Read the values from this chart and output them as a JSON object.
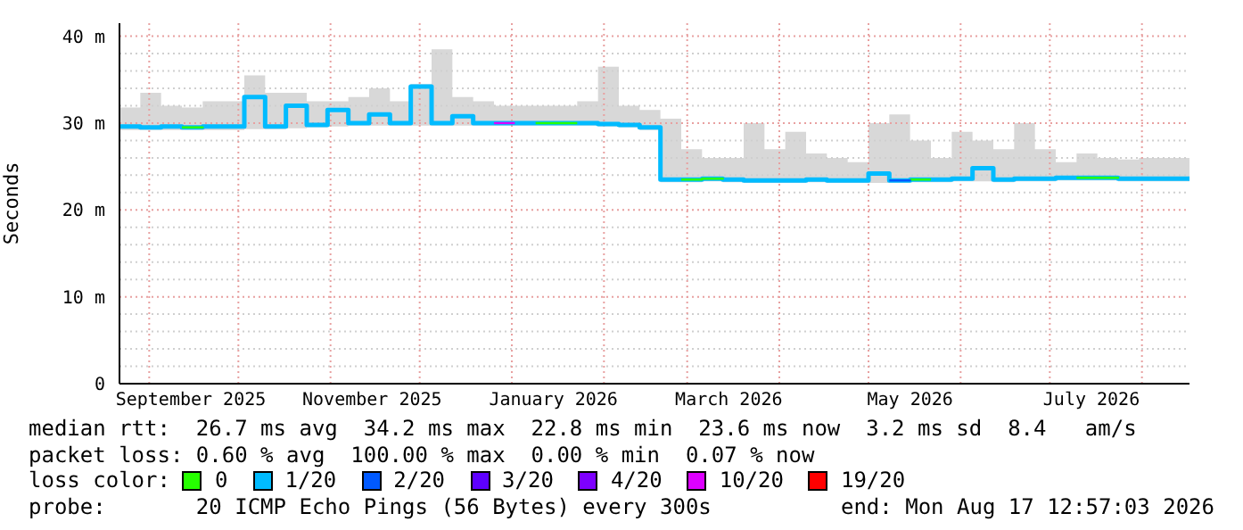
{
  "chart_data": {
    "type": "step",
    "ylabel": "Seconds",
    "legend_title": "loss color:",
    "x": [
      "2025-08-22",
      "2025-08-29",
      "2025-09-05",
      "2025-09-12",
      "2025-09-19",
      "2025-09-26",
      "2025-10-03",
      "2025-10-10",
      "2025-10-17",
      "2025-10-24",
      "2025-10-31",
      "2025-11-07",
      "2025-11-14",
      "2025-11-21",
      "2025-11-28",
      "2025-12-05",
      "2025-12-12",
      "2025-12-19",
      "2025-12-26",
      "2026-01-02",
      "2026-01-09",
      "2026-01-16",
      "2026-01-23",
      "2026-01-30",
      "2026-02-06",
      "2026-02-13",
      "2026-02-20",
      "2026-02-27",
      "2026-03-06",
      "2026-03-13",
      "2026-03-20",
      "2026-03-27",
      "2026-04-03",
      "2026-04-10",
      "2026-04-17",
      "2026-04-24",
      "2026-05-01",
      "2026-05-08",
      "2026-05-15",
      "2026-05-22",
      "2026-05-29",
      "2026-06-05",
      "2026-06-12",
      "2026-06-19",
      "2026-06-26",
      "2026-07-03",
      "2026-07-10",
      "2026-07-17",
      "2026-07-24",
      "2026-07-31",
      "2026-08-07",
      "2026-08-14",
      "2026-08-17"
    ],
    "series": [
      {
        "name": "0",
        "color": "#26ff00",
        "values": [
          null,
          null,
          null,
          29.5,
          29.6,
          null,
          null,
          null,
          null,
          null,
          null,
          null,
          null,
          null,
          null,
          null,
          null,
          null,
          null,
          null,
          30.0,
          30.0,
          30.0,
          null,
          null,
          null,
          null,
          23.5,
          23.6,
          23.5,
          null,
          null,
          null,
          null,
          null,
          null,
          null,
          null,
          23.5,
          23.5,
          null,
          null,
          null,
          null,
          null,
          null,
          23.7,
          23.7,
          23.6,
          null,
          null,
          null,
          null
        ]
      },
      {
        "name": "1/20",
        "color": "#00bbff",
        "values": [
          29.6,
          29.5,
          29.6,
          29.5,
          29.6,
          29.6,
          33.0,
          29.6,
          32.0,
          29.8,
          31.5,
          30.0,
          31.0,
          30.0,
          34.2,
          30.0,
          30.8,
          30.0,
          30.0,
          30.0,
          30.0,
          30.0,
          30.0,
          29.9,
          29.8,
          29.5,
          23.5,
          23.5,
          23.6,
          23.5,
          23.4,
          23.4,
          23.4,
          23.5,
          23.4,
          23.4,
          24.2,
          23.4,
          23.5,
          23.5,
          23.6,
          24.8,
          23.5,
          23.6,
          23.6,
          23.7,
          23.7,
          23.7,
          23.6,
          23.6,
          23.6,
          23.6,
          23.6
        ],
        "lower": [
          29.2,
          29.2,
          29.2,
          29.2,
          29.2,
          29.2,
          29.3,
          29.3,
          29.4,
          29.5,
          29.6,
          29.7,
          29.7,
          29.7,
          29.7,
          29.7,
          29.7,
          29.7,
          29.7,
          29.7,
          29.7,
          29.7,
          29.7,
          29.6,
          29.5,
          29.2,
          23.2,
          23.2,
          23.3,
          23.2,
          23.1,
          23.1,
          23.1,
          23.2,
          23.1,
          23.1,
          23.1,
          23.1,
          23.2,
          23.2,
          23.3,
          23.3,
          23.2,
          23.3,
          23.3,
          23.4,
          23.4,
          23.4,
          23.3,
          23.3,
          23.3,
          23.3,
          23.3
        ],
        "upper": [
          31.8,
          33.5,
          32.0,
          31.8,
          32.5,
          32.5,
          35.5,
          33.5,
          33.5,
          32.5,
          32.5,
          33.0,
          34.0,
          32.5,
          34.5,
          38.5,
          33.0,
          32.5,
          32.0,
          32.0,
          32.0,
          32.0,
          32.5,
          36.5,
          32.0,
          31.5,
          30.5,
          27.0,
          26.0,
          26.0,
          30.0,
          27.0,
          29.0,
          26.5,
          26.0,
          25.5,
          30.0,
          31.0,
          28.0,
          26.0,
          29.0,
          28.0,
          27.0,
          30.0,
          27.0,
          25.5,
          26.5,
          26.0,
          25.8,
          26.0,
          26.0,
          26.0,
          26.3
        ]
      },
      {
        "name": "2/20",
        "color": "#0059ff",
        "values": [
          null,
          null,
          null,
          null,
          null,
          null,
          null,
          null,
          null,
          null,
          null,
          null,
          null,
          null,
          null,
          null,
          null,
          null,
          null,
          null,
          null,
          null,
          null,
          null,
          null,
          null,
          null,
          null,
          null,
          null,
          null,
          null,
          null,
          null,
          null,
          null,
          null,
          23.4,
          23.5,
          null,
          null,
          null,
          null,
          null,
          null,
          null,
          null,
          null,
          null,
          null,
          null,
          null,
          null
        ]
      },
      {
        "name": "3/20",
        "color": "#5e00ff",
        "values": [
          null,
          null,
          null,
          null,
          null,
          null,
          null,
          null,
          null,
          null,
          null,
          null,
          null,
          null,
          null,
          null,
          null,
          null,
          null,
          null,
          null,
          null,
          null,
          null,
          null,
          null,
          null,
          null,
          null,
          null,
          null,
          null,
          null,
          null,
          null,
          null,
          null,
          null,
          null,
          null,
          null,
          null,
          null,
          null,
          null,
          null,
          null,
          null,
          null,
          null,
          null,
          null,
          null
        ]
      },
      {
        "name": "4/20",
        "color": "#7e00ff",
        "values": [
          null,
          null,
          null,
          null,
          null,
          null,
          null,
          null,
          null,
          null,
          null,
          null,
          null,
          null,
          null,
          null,
          null,
          null,
          null,
          null,
          null,
          null,
          null,
          null,
          null,
          null,
          null,
          null,
          null,
          null,
          null,
          null,
          null,
          null,
          null,
          null,
          null,
          null,
          null,
          null,
          null,
          null,
          null,
          null,
          null,
          null,
          null,
          null,
          null,
          null,
          null,
          null,
          null
        ]
      },
      {
        "name": "10/20",
        "color": "#dd00ff",
        "values": [
          null,
          null,
          null,
          null,
          null,
          null,
          null,
          null,
          null,
          null,
          null,
          null,
          null,
          null,
          null,
          null,
          null,
          null,
          30.0,
          30.0,
          null,
          null,
          null,
          null,
          null,
          null,
          null,
          null,
          null,
          null,
          null,
          null,
          null,
          null,
          null,
          null,
          null,
          null,
          null,
          null,
          null,
          null,
          null,
          null,
          null,
          null,
          null,
          null,
          null,
          null,
          null,
          null,
          null
        ]
      },
      {
        "name": "19/20",
        "color": "#ff0000",
        "values": [
          null,
          null,
          null,
          null,
          null,
          null,
          null,
          null,
          null,
          null,
          null,
          null,
          null,
          null,
          null,
          null,
          null,
          null,
          null,
          null,
          null,
          null,
          null,
          null,
          null,
          null,
          null,
          null,
          null,
          null,
          null,
          null,
          null,
          null,
          null,
          null,
          null,
          null,
          null,
          null,
          null,
          null,
          null,
          null,
          null,
          null,
          null,
          null,
          null,
          null,
          null,
          null,
          null
        ]
      }
    ],
    "xlim": [
      "2025-08-22",
      "2026-08-17"
    ],
    "xticks": [
      {
        "value": "2025-09-01",
        "label": null
      },
      {
        "value": "2025-09-15",
        "label": "September 2025"
      },
      {
        "value": "2025-10-01",
        "label": null
      },
      {
        "value": "2025-11-01",
        "label": null
      },
      {
        "value": "2025-11-15",
        "label": "November 2025"
      },
      {
        "value": "2025-12-01",
        "label": null
      },
      {
        "value": "2026-01-01",
        "label": null
      },
      {
        "value": "2026-01-15",
        "label": "January 2026"
      },
      {
        "value": "2026-02-01",
        "label": null
      },
      {
        "value": "2026-03-01",
        "label": null
      },
      {
        "value": "2026-03-15",
        "label": "March 2026"
      },
      {
        "value": "2026-04-01",
        "label": null
      },
      {
        "value": "2026-05-01",
        "label": null
      },
      {
        "value": "2026-05-15",
        "label": "May 2026"
      },
      {
        "value": "2026-06-01",
        "label": null
      },
      {
        "value": "2026-07-01",
        "label": null
      },
      {
        "value": "2026-07-15",
        "label": "July 2026"
      },
      {
        "value": "2026-08-01",
        "label": null
      }
    ],
    "ylim": [
      0,
      41.5
    ],
    "yticks": [
      0,
      {
        "value": 2,
        "label": null
      },
      {
        "value": 4,
        "label": null
      },
      {
        "value": 6,
        "label": null
      },
      {
        "value": 8,
        "label": null
      },
      {
        "value": 10,
        "label": "10 m"
      },
      {
        "value": 12,
        "label": null
      },
      {
        "value": 14,
        "label": null
      },
      {
        "value": 16,
        "label": null
      },
      {
        "value": 18,
        "label": null
      },
      {
        "value": 20,
        "label": "20 m"
      },
      {
        "value": 22,
        "label": null
      },
      {
        "value": 24,
        "label": null
      },
      {
        "value": 26,
        "label": null
      },
      {
        "value": 28,
        "label": null
      },
      {
        "value": 30,
        "label": "30 m"
      },
      {
        "value": 32,
        "label": null
      },
      {
        "value": 34,
        "label": null
      },
      {
        "value": 36,
        "label": null
      },
      {
        "value": 38,
        "label": null
      },
      {
        "value": 40,
        "label": "40 m"
      }
    ],
    "grid": true,
    "legend": "bottom",
    "annotations": [
      "median rtt:  26.7 ms avg  34.2 ms max  22.8 ms min  23.6 ms now  3.2 ms sd  8.4   am/s",
      "packet loss: 0.60 % avg  100.00 % max  0.00 % min  0.07 % now",
      "probe:       20 ICMP Echo Pings (56 Bytes) every 300s",
      "end: Mon Aug 17 12:57:03 2026"
    ]
  }
}
